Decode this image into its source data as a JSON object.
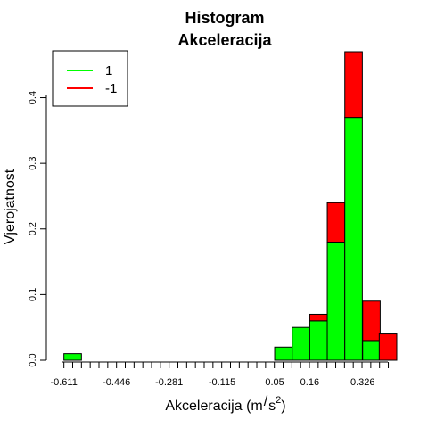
{
  "chart_data": {
    "type": "bar",
    "title": "Histogram",
    "subtitle": "Akceleracija",
    "xlabel_base": "Akceleracija (m",
    "xlabel_slash": "/",
    "xlabel_unit": "s",
    "xlabel_exp": "2",
    "xlabel_close": ")",
    "ylabel": "Vjerojatnost",
    "xlim": [
      -0.666,
      0.433
    ],
    "ylim": [
      0,
      0.47
    ],
    "x_ticks": [
      -0.611,
      -0.446,
      -0.281,
      -0.115,
      0.05,
      0.16,
      0.326
    ],
    "x_tick_labels": [
      "-0.611",
      "-0.446",
      "-0.281",
      "-0.115",
      "0.05",
      "0.16",
      "0.326"
    ],
    "y_ticks": [
      0.0,
      0.1,
      0.2,
      0.3,
      0.4
    ],
    "y_tick_labels": [
      "0.0",
      "0.1",
      "0.2",
      "0.3",
      "0.4"
    ],
    "bin_width": 0.055,
    "bin_starts": [
      -0.611,
      -0.556,
      -0.501,
      -0.446,
      -0.391,
      -0.336,
      -0.281,
      -0.226,
      -0.171,
      -0.115,
      -0.06,
      -0.005,
      0.05,
      0.105,
      0.16,
      0.215,
      0.27,
      0.326,
      0.378
    ],
    "series": [
      {
        "name": "1",
        "color": "#00ff00",
        "values": [
          0.01,
          0,
          0,
          0,
          0,
          0,
          0,
          0,
          0,
          0,
          0,
          0,
          0.02,
          0.05,
          0.06,
          0.18,
          0.37,
          0.03,
          0
        ]
      },
      {
        "name": "-1",
        "color": "#ff0000",
        "values": [
          0,
          0,
          0,
          0,
          0,
          0,
          0,
          0,
          0,
          0,
          0,
          0,
          0,
          0,
          0.01,
          0.06,
          0.1,
          0.06,
          0.04
        ]
      }
    ],
    "stacked": true,
    "legend": {
      "position": "top-left",
      "entries": [
        {
          "label": "1",
          "color": "#00ff00"
        },
        {
          "label": "-1",
          "color": "#ff0000"
        }
      ]
    }
  }
}
